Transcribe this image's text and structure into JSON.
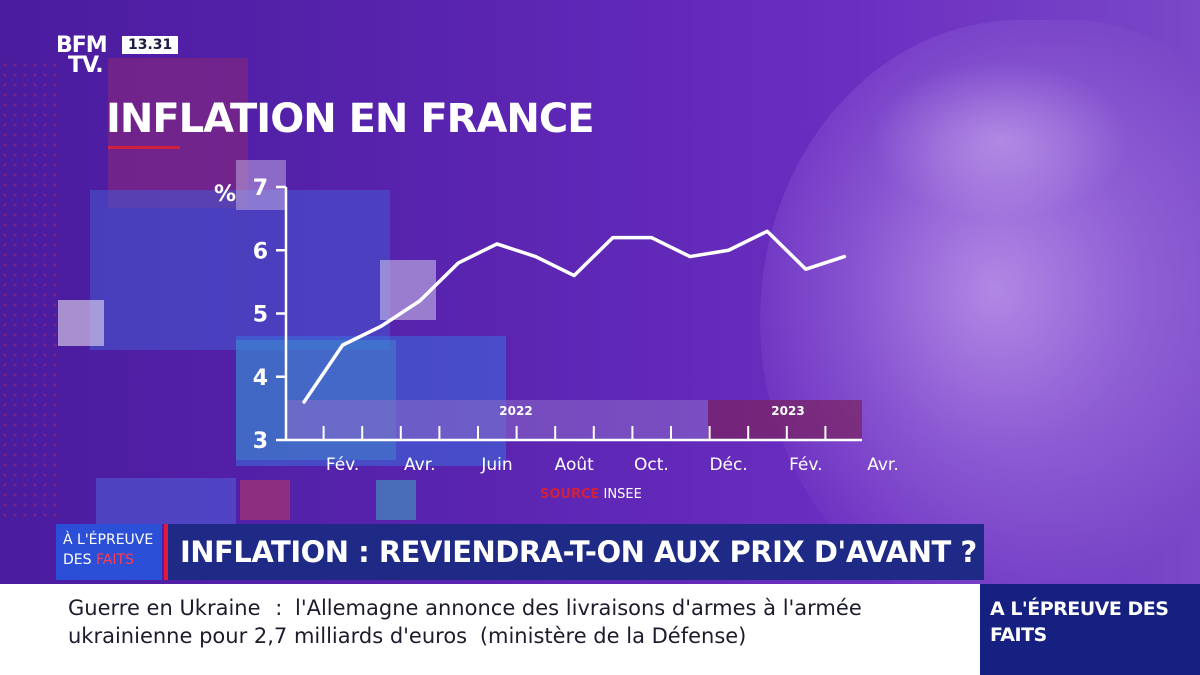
{
  "channel": {
    "logo_line1": "BFM",
    "logo_line2": "TV.",
    "time": "13.31"
  },
  "chart_title": "INFLATION EN FRANCE",
  "colors": {
    "accent_red": "#d0213c",
    "banner_blue": "#1e2a86",
    "tag_blue": "#2b4fd6",
    "band_2022": "#8a6cc8",
    "band_2023": "#7a2466"
  },
  "chart_data": {
    "type": "line",
    "title": "INFLATION EN FRANCE",
    "ylabel": "%",
    "ylim": [
      3,
      7
    ],
    "yticks": [
      "3",
      "4",
      "5",
      "6",
      "7"
    ],
    "x_tick_labels": [
      "Fév.",
      "Avr.",
      "Juin",
      "Août",
      "Oct.",
      "Déc.",
      "Fév.",
      "Avr."
    ],
    "period_bands": [
      "2022",
      "2023"
    ],
    "series": [
      {
        "x": [
          "Jan. 2022",
          "Fév. 2022",
          "Mar. 2022",
          "Avr. 2022",
          "Mai 2022",
          "Juin 2022",
          "Juil. 2022",
          "Août 2022",
          "Sep. 2022",
          "Oct. 2022",
          "Nov. 2022",
          "Déc. 2022",
          "Jan. 2023",
          "Fév. 2023",
          "Mar. 2023",
          "Avr. 2023"
        ],
        "values": [
          3.6,
          4.5,
          4.8,
          5.2,
          5.8,
          6.1,
          5.9,
          5.6,
          6.2,
          6.2,
          5.9,
          6.0,
          6.3,
          5.7,
          5.9,
          null
        ],
        "color": "#ffffff"
      }
    ],
    "source_label": "SOURCE",
    "source_name": "INSEE",
    "grid": false
  },
  "lower_third": {
    "tag_line1": "À L'ÉPREUVE",
    "tag_line2_a": "DES ",
    "tag_line2_b": "FAITS",
    "headline": "INFLATION : REVIENDRA-T-ON AUX PRIX D'AVANT ?"
  },
  "ticker": {
    "topic": "Guerre en Ukraine",
    "separator": ":",
    "text_line1": "l'Allemagne annonce des livraisons d'armes à l'armée",
    "text_line2": "ukrainienne pour 2,7 milliards d'euros",
    "attribution": "(ministère de la Défense)",
    "side_label_line1": "A L'ÉPREUVE DES",
    "side_label_line2": "FAITS"
  }
}
